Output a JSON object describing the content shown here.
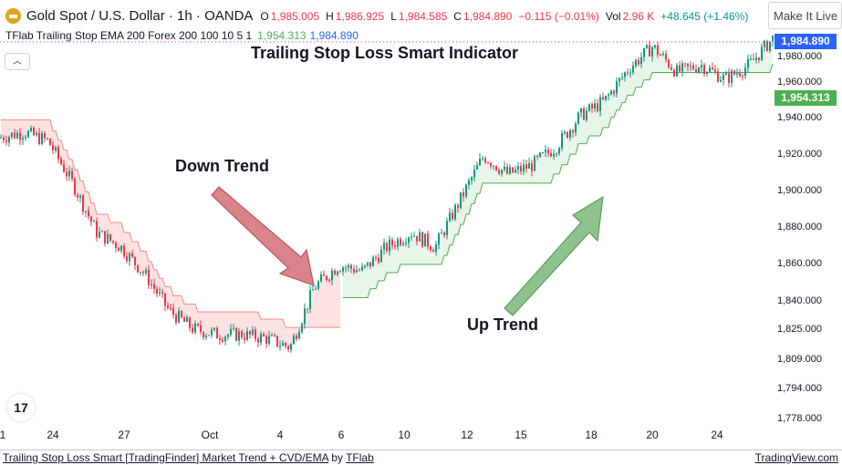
{
  "header": {
    "symbol": "Gold Spot / U.S. Dollar · 1h · OANDA",
    "o_label": "O",
    "open": "1,985.005",
    "h_label": "H",
    "high": "1,986.925",
    "l_label": "L",
    "low": "1,984.585",
    "c_label": "C",
    "close": "1,984.890",
    "change": "−0.115 (−0.01%)",
    "vol_label": "Vol",
    "volume": "2.96 K",
    "extra_change": "+48.645 (+1.46%)"
  },
  "indicator": {
    "name": "TFlab Trailing Stop EMA 200 Forex 200 100 10 5 1",
    "stop_value": "1,954.313",
    "price_value": "1,984.890"
  },
  "collapse_icon": "chevron-up-icon",
  "title": "Trailing Stop Loss Smart Indicator",
  "make_live": "Make It Live",
  "annotations": {
    "down": "Down Trend",
    "up": "Up Trend"
  },
  "colors": {
    "up": "#089981",
    "down": "#f23645",
    "red_stop": "#f28b82",
    "red_fill": "#fde2e2",
    "green_stop": "#4caf50",
    "green_fill": "#e8f5e9",
    "price_tag": "#2962ff"
  },
  "chart_data": {
    "type": "candlestick",
    "price_ticks": [
      "1,980.000",
      "1,960.000",
      "1,940.000",
      "1,920.000",
      "1,900.000",
      "1,880.000",
      "1,860.000",
      "1,840.000",
      "1,825.000",
      "1,809.000",
      "1,794.000",
      "1,778.000"
    ],
    "time_ticks": [
      "1",
      "24",
      "27",
      "Oct",
      "4",
      "6",
      "10",
      "12",
      "15",
      "18",
      "20",
      "24"
    ],
    "price_tag": "1,984.890",
    "stop_tag": "1,954.313",
    "close_path": [
      1930,
      1933,
      1928,
      1905,
      1878,
      1870,
      1855,
      1835,
      1825,
      1822,
      1822,
      1820,
      1815,
      1848,
      1860,
      1857,
      1870,
      1878,
      1870,
      1895,
      1920,
      1910,
      1915,
      1925,
      1942,
      1950,
      1968,
      1980,
      1966,
      1970,
      1962,
      1970,
      1985
    ],
    "trend_flip_index": 13
  },
  "footer": {
    "idea": "Trailing Stop Loss Smart [TradingFinder] Market Trend + CVD/EMA",
    "by": "by",
    "author": "TFlab",
    "site": "TradingView.com"
  }
}
